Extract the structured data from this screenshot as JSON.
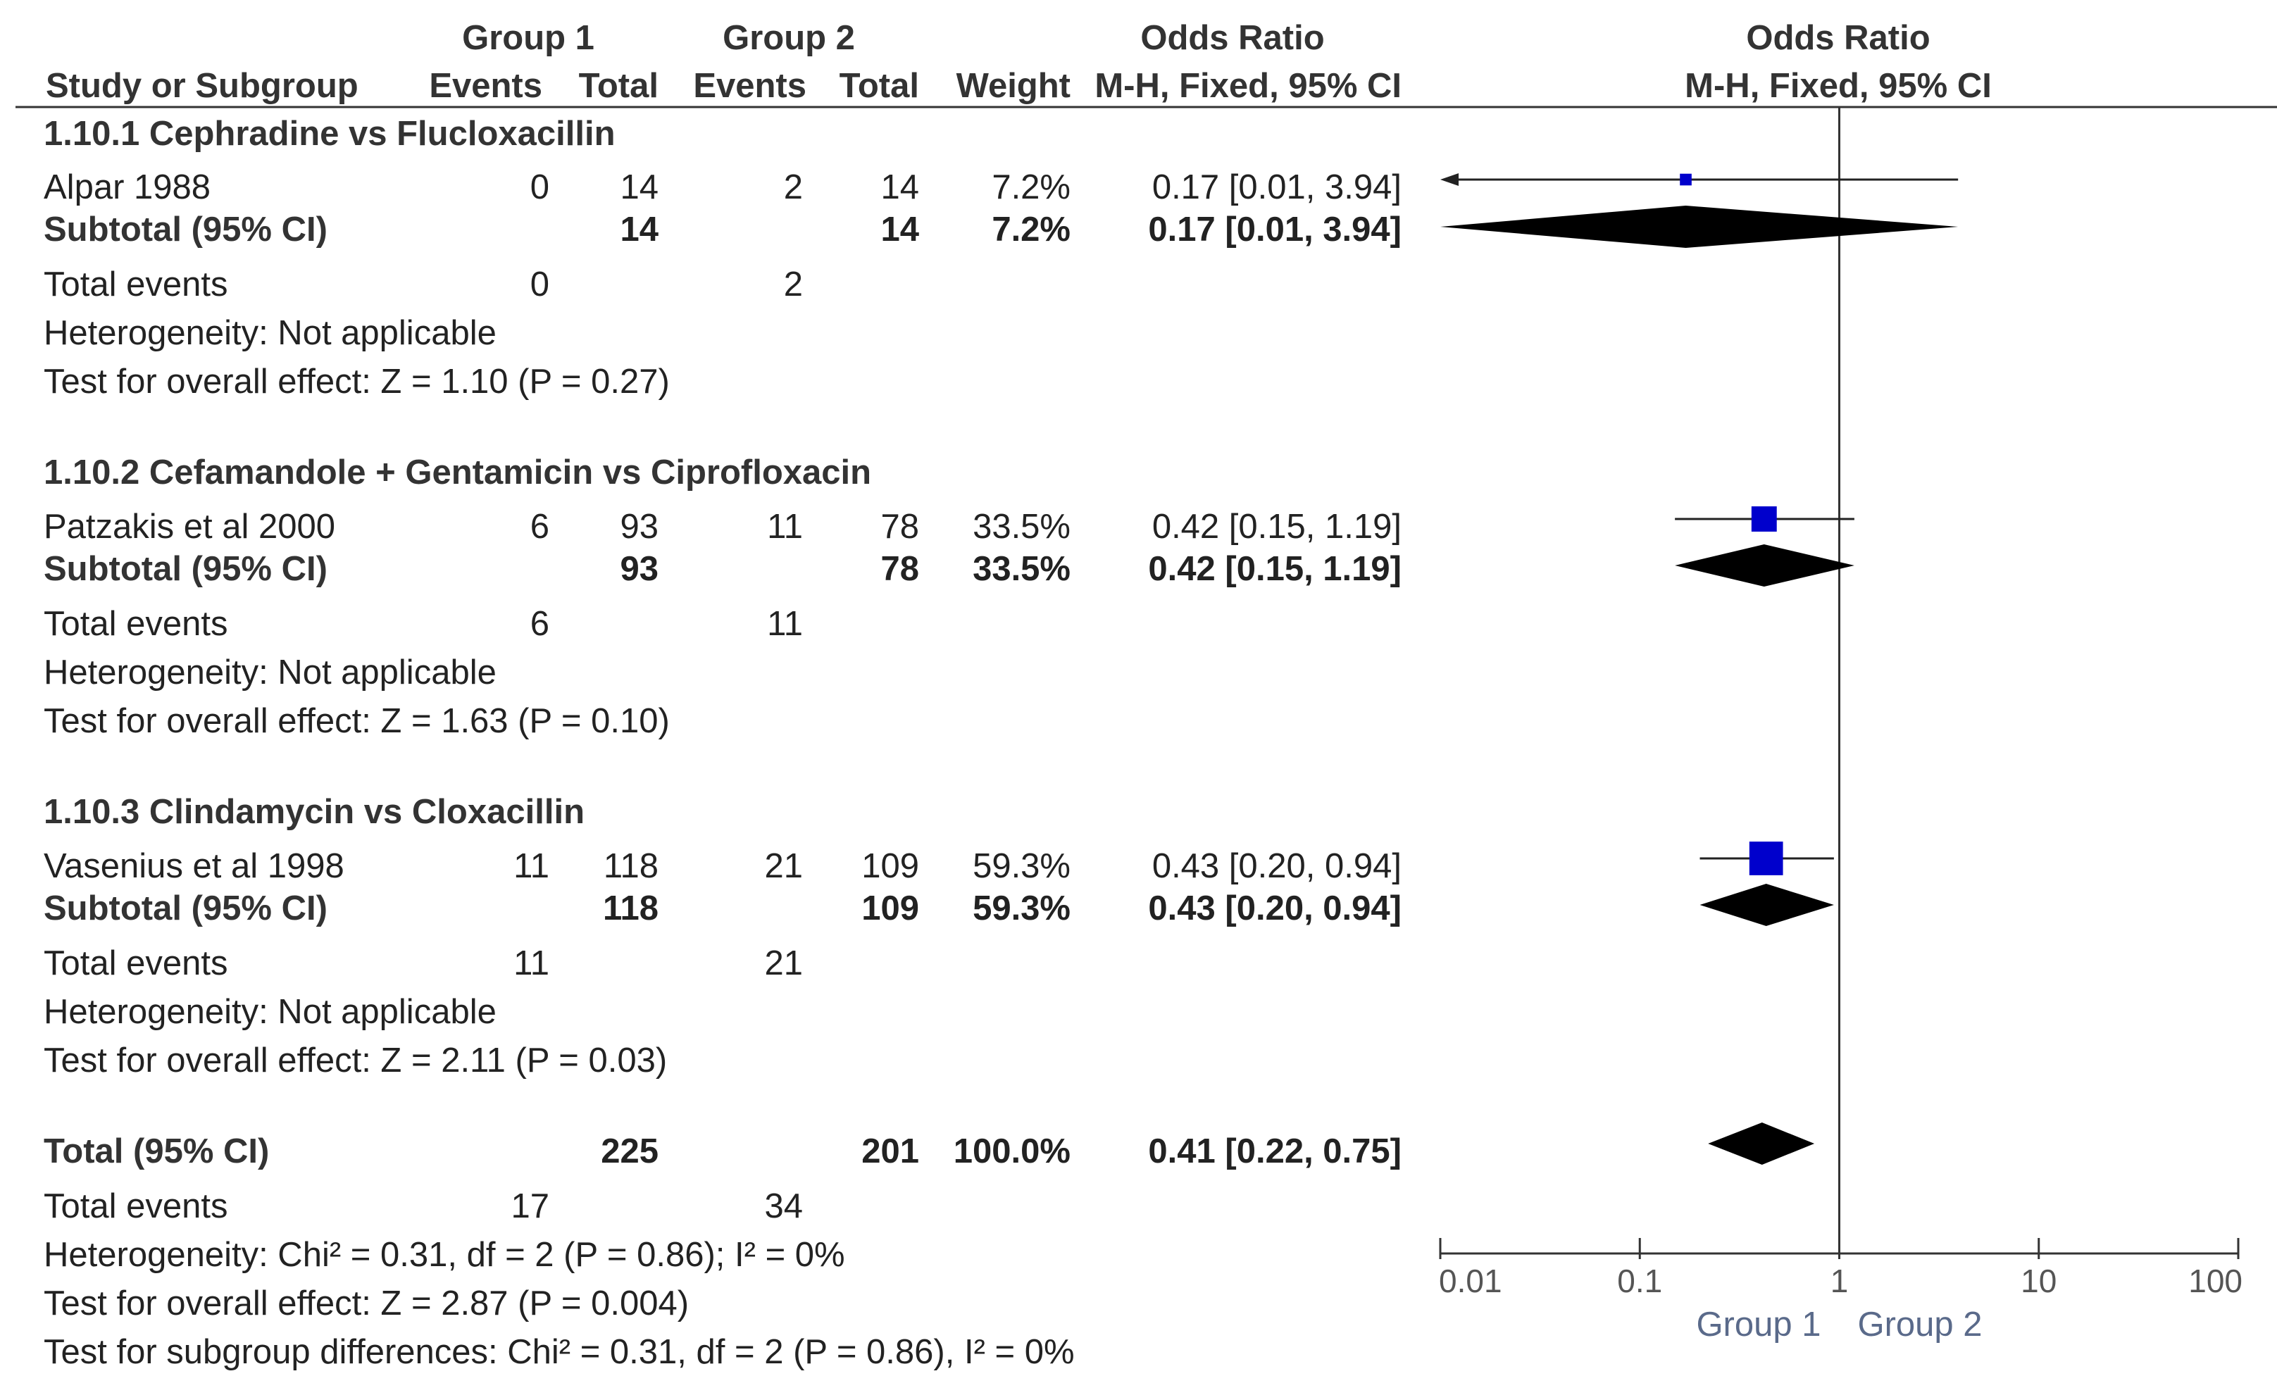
{
  "colors": {
    "text": "#222222",
    "header": "#333333",
    "box": "#0000cc",
    "diamond": "#000000",
    "axis": "#333333",
    "tick_label": "#555555",
    "favour_label": "#5a6a8a"
  },
  "header": {
    "group1": "Group 1",
    "group2": "Group 2",
    "or_col": "Odds Ratio",
    "or_plot": "Odds Ratio",
    "study": "Study or Subgroup",
    "events1": "Events",
    "total1": "Total",
    "events2": "Events",
    "total2": "Total",
    "weight": "Weight",
    "method": "M-H, Fixed, 95% CI",
    "method_plot": "M-H, Fixed, 95% CI"
  },
  "subgroups": [
    {
      "title": "1.10.1 Cephradine vs Flucloxacillin",
      "study": {
        "name": "Alpar 1988",
        "e1": "0",
        "t1": "14",
        "e2": "2",
        "t2": "14",
        "weight": "7.2%",
        "or": "0.17 [0.01, 3.94]"
      },
      "subtotal": {
        "label": "Subtotal (95% CI)",
        "t1": "14",
        "t2": "14",
        "weight": "7.2%",
        "or": "0.17 [0.01, 3.94]"
      },
      "total_events": {
        "label": "Total events",
        "e1": "0",
        "e2": "2"
      },
      "heterogeneity": "Heterogeneity: Not applicable",
      "overall": "Test for overall effect: Z = 1.10 (P = 0.27)"
    },
    {
      "title": "1.10.2 Cefamandole + Gentamicin vs Ciprofloxacin",
      "study": {
        "name": "Patzakis et al 2000",
        "e1": "6",
        "t1": "93",
        "e2": "11",
        "t2": "78",
        "weight": "33.5%",
        "or": "0.42 [0.15, 1.19]"
      },
      "subtotal": {
        "label": "Subtotal (95% CI)",
        "t1": "93",
        "t2": "78",
        "weight": "33.5%",
        "or": "0.42 [0.15, 1.19]"
      },
      "total_events": {
        "label": "Total events",
        "e1": "6",
        "e2": "11"
      },
      "heterogeneity": "Heterogeneity: Not applicable",
      "overall": "Test for overall effect: Z = 1.63 (P = 0.10)"
    },
    {
      "title": "1.10.3 Clindamycin vs Cloxacillin",
      "study": {
        "name": "Vasenius et al 1998",
        "e1": "11",
        "t1": "118",
        "e2": "21",
        "t2": "109",
        "weight": "59.3%",
        "or": "0.43 [0.20, 0.94]"
      },
      "subtotal": {
        "label": "Subtotal (95% CI)",
        "t1": "118",
        "t2": "109",
        "weight": "59.3%",
        "or": "0.43 [0.20, 0.94]"
      },
      "total_events": {
        "label": "Total events",
        "e1": "11",
        "e2": "21"
      },
      "heterogeneity": "Heterogeneity: Not applicable",
      "overall": "Test for overall effect: Z = 2.11 (P = 0.03)"
    }
  ],
  "total": {
    "label": "Total (95% CI)",
    "t1": "225",
    "t2": "201",
    "weight": "100.0%",
    "or": "0.41 [0.22, 0.75]",
    "events_label": "Total events",
    "e1": "17",
    "e2": "34",
    "heterogeneity": "Heterogeneity: Chi² = 0.31, df = 2 (P = 0.86); I² = 0%",
    "overall": "Test for overall effect: Z = 2.87 (P = 0.004)",
    "subgroup_diff": "Test for subgroup differences: Chi² = 0.31, df = 2 (P = 0.86), I² = 0%"
  },
  "chart_data": {
    "type": "forest",
    "title": "Odds Ratio",
    "subtitle": "M-H, Fixed, 95% CI",
    "scale": "log",
    "xlim": [
      0.01,
      100
    ],
    "reference_line": 1,
    "ticks": [
      0.01,
      0.1,
      1,
      10,
      100
    ],
    "tick_labels": [
      "0.01",
      "0.1",
      "1",
      "10",
      "100"
    ],
    "favours_left": "Group 1",
    "favours_right": "Group 2",
    "studies": [
      {
        "name": "Alpar 1988",
        "or": 0.17,
        "lo": 0.01,
        "hi": 3.94,
        "weight": 7.2,
        "row": 1,
        "arrow_left": true
      },
      {
        "name": "Patzakis et al 2000",
        "or": 0.42,
        "lo": 0.15,
        "hi": 1.19,
        "weight": 33.5,
        "row": 7
      },
      {
        "name": "Vasenius et al 1998",
        "or": 0.43,
        "lo": 0.2,
        "hi": 0.94,
        "weight": 59.3,
        "row": 14
      }
    ],
    "diamonds": [
      {
        "name": "Subtotal 1.10.1",
        "or": 0.17,
        "lo": 0.01,
        "hi": 3.94,
        "row": 2
      },
      {
        "name": "Subtotal 1.10.2",
        "or": 0.42,
        "lo": 0.15,
        "hi": 1.19,
        "row": 9
      },
      {
        "name": "Subtotal 1.10.3",
        "or": 0.43,
        "lo": 0.2,
        "hi": 0.94,
        "row": 16
      },
      {
        "name": "Total",
        "or": 0.41,
        "lo": 0.22,
        "hi": 0.75,
        "row": 21
      }
    ]
  }
}
